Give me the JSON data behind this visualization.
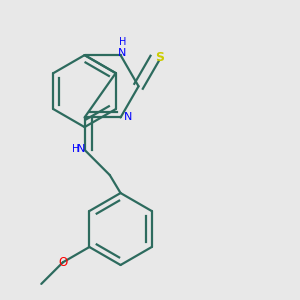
{
  "bg_color": "#e8e8e8",
  "bond_color": "#2d6b5e",
  "n_color": "#0000ff",
  "s_color": "#cccc00",
  "o_color": "#ff0000",
  "line_width": 1.6,
  "figsize": [
    3.0,
    3.0
  ],
  "dpi": 100,
  "xlim": [
    0.05,
    0.95
  ],
  "ylim": [
    0.05,
    0.95
  ]
}
